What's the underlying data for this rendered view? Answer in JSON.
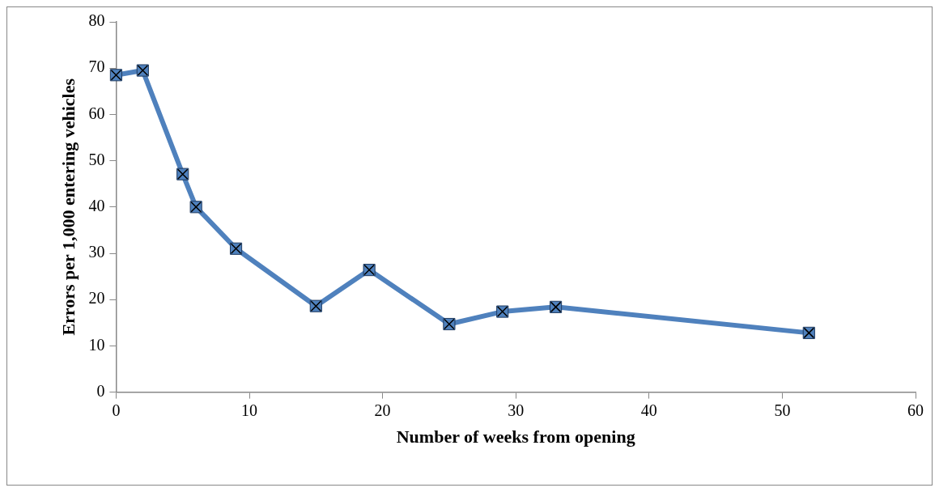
{
  "chart_data": {
    "type": "line",
    "xlabel": "Number of weeks from opening",
    "ylabel": "Errors per 1,000 entering vehicles",
    "x": [
      0,
      2,
      5,
      6,
      9,
      15,
      19,
      25,
      29,
      33,
      52
    ],
    "series": [
      {
        "color": "#4f81bd",
        "values": [
          68.5,
          69.5,
          47.1,
          40,
          31,
          18.6,
          26.4,
          14.7,
          17.4,
          18.4,
          12.8
        ]
      }
    ],
    "xlim": [
      0,
      60
    ],
    "xticks": [
      0,
      10,
      20,
      30,
      40,
      50,
      60
    ],
    "ylim": [
      0,
      80
    ],
    "yticks": [
      0,
      10,
      20,
      30,
      40,
      50,
      60,
      70,
      80
    ],
    "grid": false,
    "legend": false,
    "marker": "square",
    "line_style": "solid"
  }
}
